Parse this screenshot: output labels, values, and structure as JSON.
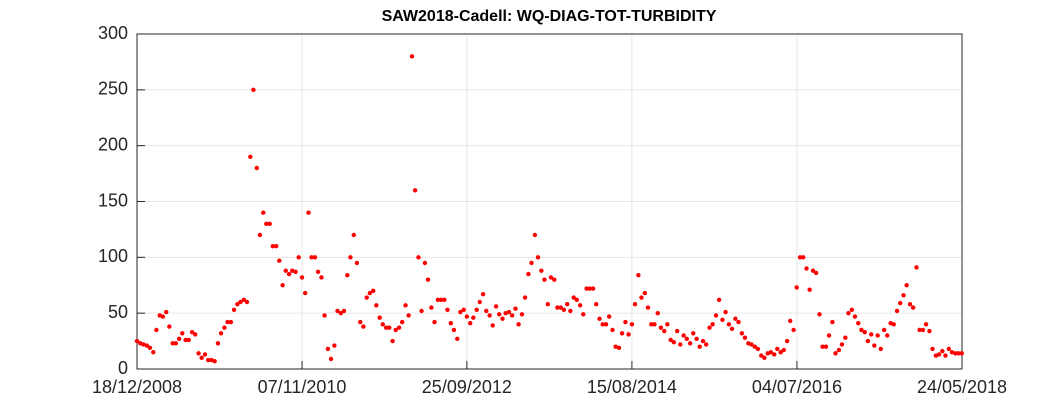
{
  "chart_data": {
    "type": "scatter",
    "title": "SAW2018-Cadell: WQ-DIAG-TOT-TURBIDITY",
    "color": "#ff0000",
    "grid": true,
    "xlim": [
      "2008-12-18",
      "2018-05-24"
    ],
    "xticks": [
      {
        "value": "2008-12-18",
        "label": "18/12/2008"
      },
      {
        "value": "2010-11-07",
        "label": "07/11/2010"
      },
      {
        "value": "2012-09-25",
        "label": "25/09/2012"
      },
      {
        "value": "2014-08-15",
        "label": "15/08/2014"
      },
      {
        "value": "2016-07-04",
        "label": "04/07/2016"
      },
      {
        "value": "2018-05-24",
        "label": "24/05/2018"
      }
    ],
    "ylim": [
      0,
      300
    ],
    "yticks": [
      0,
      50,
      100,
      150,
      200,
      250,
      300
    ],
    "x": [
      "2008-12-18",
      "2009-01-01",
      "2009-01-14",
      "2009-01-28",
      "2009-02-10",
      "2009-02-24",
      "2009-03-09",
      "2009-03-23",
      "2009-04-05",
      "2009-04-19",
      "2009-05-02",
      "2009-05-16",
      "2009-05-29",
      "2009-06-12",
      "2009-06-25",
      "2009-07-09",
      "2009-07-22",
      "2009-08-05",
      "2009-08-18",
      "2009-09-01",
      "2009-09-14",
      "2009-09-28",
      "2009-10-11",
      "2009-10-25",
      "2009-11-07",
      "2009-11-21",
      "2009-12-04",
      "2009-12-18",
      "2009-12-31",
      "2010-01-14",
      "2010-01-27",
      "2010-02-10",
      "2010-02-23",
      "2010-03-09",
      "2010-03-22",
      "2010-04-05",
      "2010-04-18",
      "2010-05-02",
      "2010-05-15",
      "2010-05-29",
      "2010-06-11",
      "2010-06-25",
      "2010-07-08",
      "2010-07-22",
      "2010-08-04",
      "2010-08-18",
      "2010-08-31",
      "2010-09-14",
      "2010-09-27",
      "2010-10-11",
      "2010-10-24",
      "2010-11-07",
      "2010-11-20",
      "2010-12-04",
      "2010-12-17",
      "2010-12-31",
      "2011-01-13",
      "2011-01-27",
      "2011-02-09",
      "2011-02-23",
      "2011-03-08",
      "2011-03-22",
      "2011-04-04",
      "2011-04-18",
      "2011-05-01",
      "2011-05-15",
      "2011-05-28",
      "2011-06-11",
      "2011-06-24",
      "2011-07-08",
      "2011-07-21",
      "2011-08-04",
      "2011-08-17",
      "2011-08-31",
      "2011-09-13",
      "2011-09-27",
      "2011-10-10",
      "2011-10-24",
      "2011-11-06",
      "2011-11-20",
      "2011-12-03",
      "2011-12-17",
      "2011-12-30",
      "2012-01-13",
      "2012-01-26",
      "2012-02-09",
      "2012-02-22",
      "2012-03-07",
      "2012-03-20",
      "2012-04-03",
      "2012-04-16",
      "2012-04-30",
      "2012-05-13",
      "2012-05-27",
      "2012-06-09",
      "2012-06-23",
      "2012-07-06",
      "2012-07-20",
      "2012-08-02",
      "2012-08-16",
      "2012-08-29",
      "2012-09-12",
      "2012-09-25",
      "2012-10-09",
      "2012-10-22",
      "2012-11-05",
      "2012-11-18",
      "2012-12-02",
      "2012-12-15",
      "2012-12-29",
      "2013-01-11",
      "2013-01-25",
      "2013-02-07",
      "2013-02-21",
      "2013-03-06",
      "2013-03-20",
      "2013-04-02",
      "2013-04-16",
      "2013-04-29",
      "2013-05-13",
      "2013-05-26",
      "2013-06-09",
      "2013-06-22",
      "2013-07-06",
      "2013-07-19",
      "2013-08-02",
      "2013-08-15",
      "2013-08-29",
      "2013-09-11",
      "2013-09-25",
      "2013-10-08",
      "2013-10-22",
      "2013-11-04",
      "2013-11-18",
      "2013-12-01",
      "2013-12-15",
      "2013-12-28",
      "2014-01-11",
      "2014-01-24",
      "2014-02-07",
      "2014-02-20",
      "2014-03-06",
      "2014-03-19",
      "2014-04-02",
      "2014-04-15",
      "2014-04-29",
      "2014-05-12",
      "2014-05-26",
      "2014-06-08",
      "2014-06-22",
      "2014-07-05",
      "2014-07-19",
      "2014-08-01",
      "2014-08-15",
      "2014-08-28",
      "2014-09-11",
      "2014-09-24",
      "2014-10-08",
      "2014-10-21",
      "2014-11-04",
      "2014-11-17",
      "2014-12-01",
      "2014-12-14",
      "2014-12-28",
      "2015-01-10",
      "2015-01-24",
      "2015-02-06",
      "2015-02-20",
      "2015-03-05",
      "2015-03-19",
      "2015-04-01",
      "2015-04-15",
      "2015-04-28",
      "2015-05-12",
      "2015-05-25",
      "2015-06-08",
      "2015-06-21",
      "2015-07-05",
      "2015-07-18",
      "2015-08-01",
      "2015-08-14",
      "2015-08-28",
      "2015-09-10",
      "2015-09-24",
      "2015-10-07",
      "2015-10-21",
      "2015-11-03",
      "2015-11-17",
      "2015-11-30",
      "2015-12-14",
      "2015-12-27",
      "2016-01-10",
      "2016-01-23",
      "2016-02-06",
      "2016-02-19",
      "2016-03-04",
      "2016-03-17",
      "2016-03-31",
      "2016-04-13",
      "2016-04-27",
      "2016-05-10",
      "2016-05-24",
      "2016-06-06",
      "2016-06-20",
      "2016-07-03",
      "2016-07-17",
      "2016-07-30",
      "2016-08-13",
      "2016-08-26",
      "2016-09-09",
      "2016-09-22",
      "2016-10-06",
      "2016-10-19",
      "2016-11-02",
      "2016-11-15",
      "2016-11-29",
      "2016-12-12",
      "2016-12-26",
      "2017-01-08",
      "2017-01-22",
      "2017-02-04",
      "2017-02-18",
      "2017-03-03",
      "2017-03-17",
      "2017-03-30",
      "2017-04-13",
      "2017-04-26",
      "2017-05-10",
      "2017-05-23",
      "2017-06-06",
      "2017-06-19",
      "2017-07-03",
      "2017-07-16",
      "2017-07-30",
      "2017-08-12",
      "2017-08-26",
      "2017-09-08",
      "2017-09-22",
      "2017-10-05",
      "2017-10-19",
      "2017-11-01",
      "2017-11-15",
      "2017-11-28",
      "2017-12-12",
      "2017-12-25",
      "2018-01-08",
      "2018-01-21",
      "2018-02-04",
      "2018-02-17",
      "2018-03-03",
      "2018-03-16",
      "2018-03-30",
      "2018-04-12",
      "2018-04-26",
      "2018-05-09",
      "2018-05-23"
    ],
    "values": [
      25,
      23,
      22,
      21,
      19,
      15,
      35,
      48,
      47,
      51,
      38,
      23,
      23,
      27,
      32,
      26,
      26,
      33,
      31,
      14,
      10,
      13,
      8,
      8,
      7,
      23,
      32,
      37,
      42,
      42,
      53,
      58,
      60,
      62,
      60,
      190,
      250,
      180,
      120,
      140,
      130,
      130,
      110,
      110,
      97,
      75,
      88,
      85,
      88,
      87,
      100,
      82,
      68,
      140,
      100,
      100,
      87,
      82,
      48,
      18,
      9,
      21,
      52,
      50,
      52,
      84,
      100,
      120,
      95,
      42,
      38,
      64,
      68,
      70,
      57,
      46,
      40,
      37,
      37,
      25,
      35,
      37,
      42,
      57,
      48,
      280,
      160,
      100,
      52,
      95,
      80,
      55,
      42,
      62,
      62,
      62,
      53,
      41,
      35,
      27,
      51,
      53,
      47,
      41,
      46,
      53,
      60,
      67,
      52,
      48,
      39,
      56,
      49,
      45,
      50,
      51,
      48,
      54,
      40,
      49,
      64,
      85,
      95,
      120,
      100,
      88,
      80,
      58,
      82,
      80,
      55,
      55,
      53,
      58,
      52,
      64,
      62,
      57,
      49,
      72,
      72,
      72,
      58,
      45,
      40,
      40,
      47,
      35,
      20,
      19,
      32,
      42,
      31,
      40,
      58,
      84,
      64,
      68,
      55,
      40,
      40,
      50,
      37,
      34,
      40,
      26,
      24,
      34,
      22,
      30,
      27,
      23,
      32,
      27,
      20,
      25,
      22,
      37,
      40,
      48,
      62,
      44,
      51,
      40,
      36,
      45,
      42,
      32,
      28,
      23,
      22,
      20,
      18,
      12,
      10,
      14,
      15,
      13,
      18,
      15,
      17,
      25,
      43,
      35,
      73,
      100,
      100,
      90,
      71,
      88,
      86,
      49,
      20,
      20,
      30,
      42,
      14,
      17,
      22,
      28,
      50,
      53,
      47,
      41,
      35,
      33,
      25,
      31,
      21,
      30,
      18,
      35,
      30,
      41,
      40,
      52,
      59,
      66,
      75,
      58,
      55,
      91,
      35,
      35,
      40,
      34,
      18,
      12,
      13,
      16,
      12,
      18,
      15,
      14,
      14,
      14
    ]
  }
}
